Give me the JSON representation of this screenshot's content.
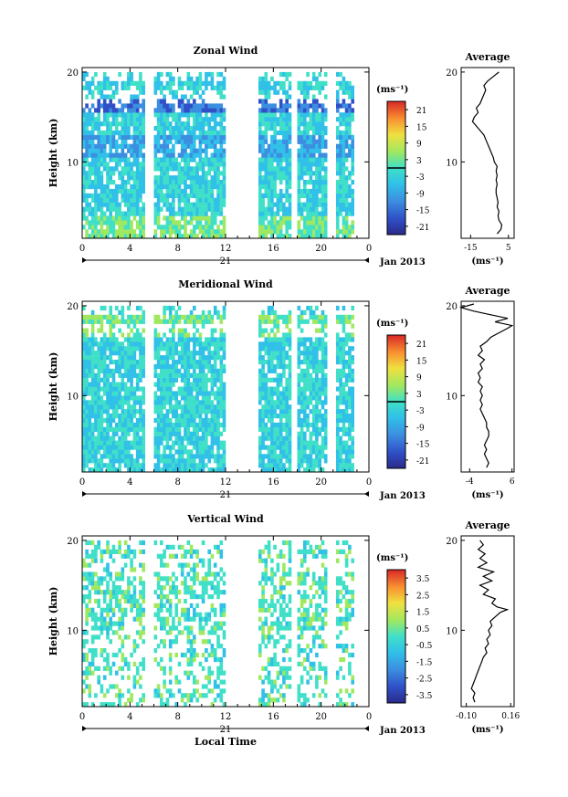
{
  "figure": {
    "x_time_label": "Local Time",
    "date_label": "Jan 2013",
    "day_label": "21",
    "height_label": "Height (km)",
    "unit_label": "(ms⁻¹)",
    "average_title": "Average"
  },
  "chart_data": [
    {
      "type": "heatmap",
      "title": "Zonal Wind",
      "xlabel": "",
      "ylabel": "Height (km)",
      "x_ticks": [
        "0",
        "4",
        "8",
        "12",
        "16",
        "20",
        "0"
      ],
      "xlim": [
        0,
        24
      ],
      "y_ticks": [
        "20",
        "10"
      ],
      "ylim": [
        1.5,
        20.5
      ],
      "colorbar": {
        "unit": "(ms⁻¹)",
        "ticks": [
          "21",
          "15",
          "9",
          "3",
          "-3",
          "-9",
          "-15",
          "-21"
        ],
        "range": [
          -24,
          24
        ]
      },
      "data_gaps_hours": [
        [
          5.3,
          5.9
        ],
        [
          12.0,
          14.6
        ],
        [
          17.5,
          17.8
        ],
        [
          20.6,
          21.2
        ],
        [
          22.8,
          24
        ]
      ],
      "profile": {
        "title": "Average",
        "xlabel": "(ms⁻¹)",
        "x_ticks": [
          "-15",
          "5"
        ],
        "xlim": [
          -20,
          8
        ],
        "ylim": [
          1.5,
          20.5
        ],
        "points": [
          [
            -1,
            2
          ],
          [
            1,
            2.5
          ],
          [
            1.5,
            3
          ],
          [
            0,
            3.5
          ],
          [
            -0.5,
            4
          ],
          [
            0,
            4.5
          ],
          [
            -1,
            5
          ],
          [
            -0.5,
            5.5
          ],
          [
            -1,
            6
          ],
          [
            -1.5,
            6.5
          ],
          [
            -1.5,
            7
          ],
          [
            -1,
            7.5
          ],
          [
            -1.5,
            8
          ],
          [
            -1,
            8.5
          ],
          [
            -1.5,
            9
          ],
          [
            -1,
            9.5
          ],
          [
            -2.5,
            10
          ],
          [
            -3,
            10.5
          ],
          [
            -4,
            11
          ],
          [
            -5,
            11.5
          ],
          [
            -6,
            12
          ],
          [
            -7,
            12.5
          ],
          [
            -8,
            13
          ],
          [
            -10,
            13.5
          ],
          [
            -12,
            14
          ],
          [
            -14,
            14.5
          ],
          [
            -13,
            15
          ],
          [
            -11,
            15.5
          ],
          [
            -12,
            16
          ],
          [
            -10,
            16.5
          ],
          [
            -9,
            17
          ],
          [
            -8,
            17.5
          ],
          [
            -7,
            18
          ],
          [
            -8,
            18.5
          ],
          [
            -6,
            19
          ],
          [
            -3,
            19.5
          ],
          [
            0,
            20
          ]
        ]
      }
    },
    {
      "type": "heatmap",
      "title": "Meridional Wind",
      "xlabel": "",
      "ylabel": "Height (km)",
      "x_ticks": [
        "0",
        "4",
        "8",
        "12",
        "16",
        "20",
        "0"
      ],
      "xlim": [
        0,
        24
      ],
      "y_ticks": [
        "20",
        "10"
      ],
      "ylim": [
        1.5,
        20.5
      ],
      "colorbar": {
        "unit": "(ms⁻¹)",
        "ticks": [
          "21",
          "15",
          "9",
          "3",
          "-3",
          "-9",
          "-15",
          "-21"
        ],
        "range": [
          -24,
          24
        ]
      },
      "data_gaps_hours": [
        [
          5.3,
          5.9
        ],
        [
          12.0,
          14.6
        ],
        [
          17.5,
          17.8
        ],
        [
          20.6,
          21.2
        ],
        [
          22.8,
          24
        ]
      ],
      "profile": {
        "title": "Average",
        "xlabel": "(ms⁻¹)",
        "x_ticks": [
          "-4",
          "6"
        ],
        "xlim": [
          -6,
          6.5
        ],
        "ylim": [
          1.5,
          20.5
        ],
        "points": [
          [
            0,
            2
          ],
          [
            0.5,
            2.5
          ],
          [
            0,
            3
          ],
          [
            -0.5,
            3.5
          ],
          [
            0,
            4
          ],
          [
            -0.5,
            4.5
          ],
          [
            0,
            5
          ],
          [
            0.5,
            5.5
          ],
          [
            0.5,
            6
          ],
          [
            0,
            6.5
          ],
          [
            0,
            7
          ],
          [
            -0.5,
            7.5
          ],
          [
            -1,
            8
          ],
          [
            -1.5,
            8.5
          ],
          [
            -1,
            9
          ],
          [
            -1.5,
            9.5
          ],
          [
            -1,
            10
          ],
          [
            -1.5,
            10.5
          ],
          [
            -1,
            11
          ],
          [
            -2,
            11.5
          ],
          [
            -1.5,
            12
          ],
          [
            -2,
            12.5
          ],
          [
            -1,
            13
          ],
          [
            -1.5,
            13.5
          ],
          [
            -0.5,
            14
          ],
          [
            -2,
            14.5
          ],
          [
            -1,
            15
          ],
          [
            -1.5,
            15.5
          ],
          [
            0,
            16
          ],
          [
            1,
            16.5
          ],
          [
            3,
            17
          ],
          [
            5,
            17.5
          ],
          [
            6,
            17.8
          ],
          [
            2,
            18.2
          ],
          [
            5,
            18.6
          ],
          [
            1,
            19
          ],
          [
            -3,
            19.4
          ],
          [
            -6,
            19.8
          ],
          [
            -3,
            20.2
          ]
        ]
      }
    },
    {
      "type": "heatmap",
      "title": "Vertical Wind",
      "xlabel": "Local Time",
      "ylabel": "Height (km)",
      "x_ticks": [
        "0",
        "4",
        "8",
        "12",
        "16",
        "20",
        "0"
      ],
      "xlim": [
        0,
        24
      ],
      "y_ticks": [
        "20",
        "10"
      ],
      "ylim": [
        1.5,
        20.5
      ],
      "colorbar": {
        "unit": "(ms⁻¹)",
        "ticks": [
          "3.5",
          "2.5",
          "1.5",
          "0.5",
          "-0.5",
          "-1.5",
          "-2.5",
          "-3.5"
        ],
        "range": [
          -4,
          4
        ]
      },
      "data_gaps_hours": [
        [
          5.3,
          5.9
        ],
        [
          12.0,
          14.6
        ],
        [
          17.5,
          17.8
        ],
        [
          20.6,
          21.2
        ],
        [
          22.8,
          24
        ]
      ],
      "profile": {
        "title": "Average",
        "xlabel": "(ms⁻¹)",
        "x_ticks": [
          "-0.10",
          "0.16"
        ],
        "xlim": [
          -0.13,
          0.18
        ],
        "ylim": [
          1.5,
          20.5
        ],
        "points": [
          [
            -0.05,
            2
          ],
          [
            -0.06,
            2.5
          ],
          [
            -0.05,
            3
          ],
          [
            -0.07,
            3.5
          ],
          [
            -0.06,
            4
          ],
          [
            -0.05,
            4.5
          ],
          [
            -0.04,
            5
          ],
          [
            -0.03,
            5.5
          ],
          [
            -0.02,
            6
          ],
          [
            -0.01,
            6.5
          ],
          [
            0.0,
            7
          ],
          [
            0.02,
            7.5
          ],
          [
            0.01,
            8
          ],
          [
            0.03,
            8.5
          ],
          [
            0.02,
            9
          ],
          [
            0.04,
            9.5
          ],
          [
            0.03,
            10
          ],
          [
            0.05,
            10.5
          ],
          [
            0.04,
            11
          ],
          [
            0.07,
            11.5
          ],
          [
            0.1,
            12
          ],
          [
            0.14,
            12.3
          ],
          [
            0.08,
            12.6
          ],
          [
            0.05,
            13
          ],
          [
            0.07,
            13.5
          ],
          [
            0.0,
            14
          ],
          [
            0.03,
            14.5
          ],
          [
            -0.02,
            15
          ],
          [
            0.05,
            15.5
          ],
          [
            0.0,
            16
          ],
          [
            0.06,
            16.5
          ],
          [
            -0.03,
            17
          ],
          [
            0.02,
            17.5
          ],
          [
            -0.02,
            18
          ],
          [
            0.01,
            18.5
          ],
          [
            -0.03,
            19
          ],
          [
            0.0,
            19.5
          ],
          [
            -0.02,
            20
          ]
        ]
      }
    }
  ]
}
